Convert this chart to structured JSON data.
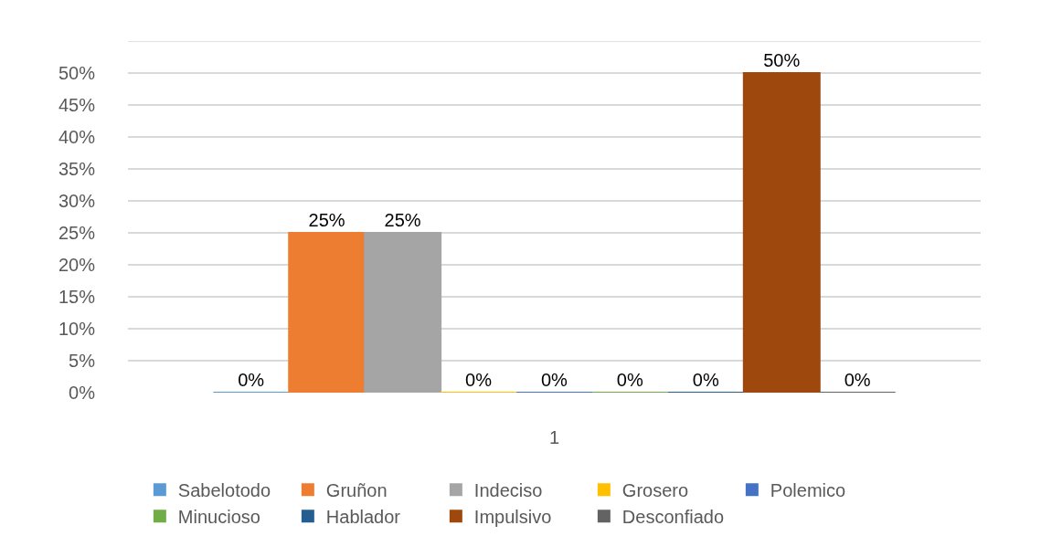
{
  "chart_data": {
    "type": "bar",
    "categories": [
      "1"
    ],
    "series": [
      {
        "name": "Sabelotodo",
        "color": "#5b9bd5",
        "values": [
          0
        ],
        "value_labels": [
          "0%"
        ]
      },
      {
        "name": "Gruñon",
        "color": "#ed7d31",
        "values": [
          25
        ],
        "value_labels": [
          "25%"
        ]
      },
      {
        "name": "Indeciso",
        "color": "#a5a5a5",
        "values": [
          25
        ],
        "value_labels": [
          "25%"
        ]
      },
      {
        "name": "Grosero",
        "color": "#ffc000",
        "values": [
          0
        ],
        "value_labels": [
          "0%"
        ]
      },
      {
        "name": "Polemico",
        "color": "#4472c4",
        "values": [
          0
        ],
        "value_labels": [
          "0%"
        ]
      },
      {
        "name": "Minucioso",
        "color": "#70ad47",
        "values": [
          0
        ],
        "value_labels": [
          "0%"
        ]
      },
      {
        "name": "Hablador",
        "color": "#255e91",
        "values": [
          0
        ],
        "value_labels": [
          "0%"
        ]
      },
      {
        "name": "Impulsivo",
        "color": "#9e480e",
        "values": [
          50
        ],
        "value_labels": [
          "50%"
        ]
      },
      {
        "name": "Desconfiado",
        "color": "#636363",
        "values": [
          0
        ],
        "value_labels": [
          "0%"
        ]
      }
    ],
    "ylim": [
      0,
      55
    ],
    "yticks": [
      {
        "value": 0,
        "label": "0%"
      },
      {
        "value": 5,
        "label": "5%"
      },
      {
        "value": 10,
        "label": "10%"
      },
      {
        "value": 15,
        "label": "15%"
      },
      {
        "value": 20,
        "label": "20%"
      },
      {
        "value": 25,
        "label": "25%"
      },
      {
        "value": 30,
        "label": "30%"
      },
      {
        "value": 35,
        "label": "35%"
      },
      {
        "value": 40,
        "label": "40%"
      },
      {
        "value": 45,
        "label": "45%"
      },
      {
        "value": 50,
        "label": "50%"
      },
      {
        "value": 55,
        "label": null
      }
    ],
    "grid": "y",
    "legend": "bottom"
  }
}
